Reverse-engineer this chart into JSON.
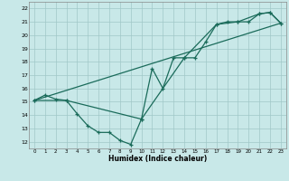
{
  "xlabel": "Humidex (Indice chaleur)",
  "bg_color": "#c8e8e8",
  "grid_color": "#a0c8c8",
  "line_color": "#1a6b5a",
  "xlim": [
    -0.5,
    23.5
  ],
  "ylim": [
    11.5,
    22.5
  ],
  "xticks": [
    0,
    1,
    2,
    3,
    4,
    5,
    6,
    7,
    8,
    9,
    10,
    11,
    12,
    13,
    14,
    15,
    16,
    17,
    18,
    19,
    20,
    21,
    22,
    23
  ],
  "yticks": [
    12,
    13,
    14,
    15,
    16,
    17,
    18,
    19,
    20,
    21,
    22
  ],
  "series1_x": [
    0,
    1,
    2,
    3,
    4,
    5,
    6,
    7,
    8,
    9,
    10,
    11,
    12,
    13,
    14,
    15,
    16,
    17,
    18,
    19,
    20,
    21,
    22,
    23
  ],
  "series1_y": [
    15.1,
    15.5,
    15.2,
    15.1,
    14.1,
    13.2,
    12.7,
    12.7,
    12.1,
    11.8,
    13.7,
    17.5,
    16.0,
    18.3,
    18.3,
    18.3,
    19.5,
    20.8,
    21.0,
    21.0,
    21.0,
    21.6,
    21.7,
    20.9
  ],
  "series2_x": [
    0,
    3,
    10,
    14,
    17,
    19,
    21,
    22,
    23
  ],
  "series2_y": [
    15.1,
    15.1,
    13.7,
    18.3,
    20.8,
    21.0,
    21.6,
    21.7,
    20.9
  ],
  "series3_x": [
    0,
    23
  ],
  "series3_y": [
    15.1,
    20.9
  ]
}
